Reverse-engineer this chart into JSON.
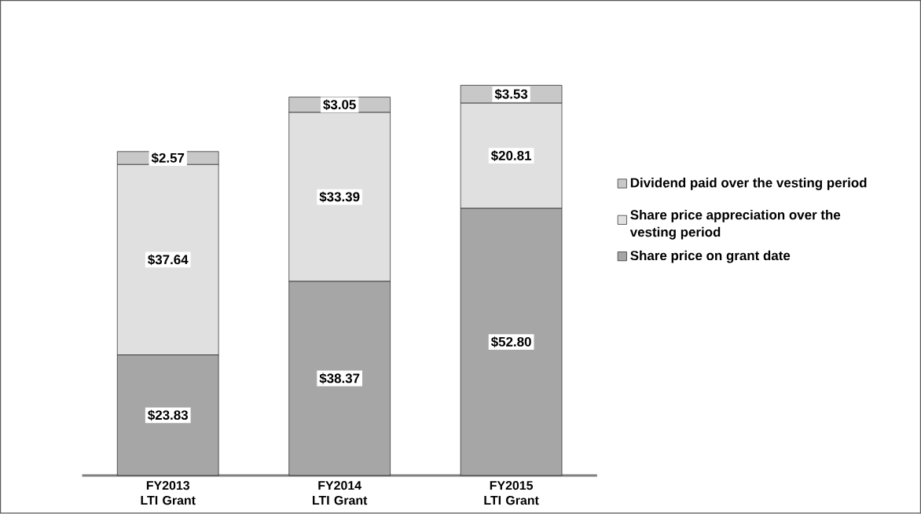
{
  "chart_data": {
    "type": "bar",
    "stacked": true,
    "categories": [
      "FY2013 LTI Grant",
      "FY2014 LTI Grant",
      "FY2015 LTI Grant"
    ],
    "series": [
      {
        "name": "Share price on grant date",
        "color": "#a6a6a6",
        "values": [
          23.83,
          38.37,
          52.8
        ],
        "value_labels": [
          "$23.83",
          "$38.37",
          "$52.80"
        ]
      },
      {
        "name": "Share price appreciation over the vesting period",
        "color": "#e0e0e0",
        "values": [
          37.64,
          33.39,
          20.81
        ],
        "value_labels": [
          "$37.64",
          "$33.39",
          "$20.81"
        ]
      },
      {
        "name": "Dividend paid over the vesting period",
        "color": "#c8c8c8",
        "values": [
          2.57,
          3.05,
          3.53
        ],
        "value_labels": [
          "$2.57",
          "$3.05",
          "$3.53"
        ]
      }
    ],
    "legend": "right"
  }
}
